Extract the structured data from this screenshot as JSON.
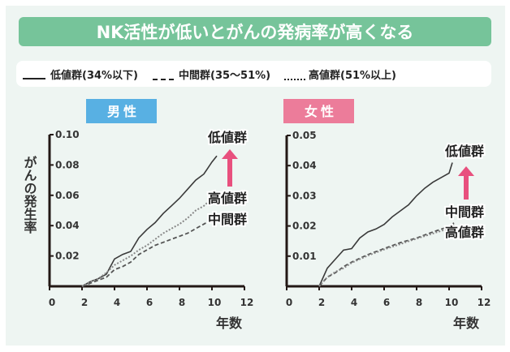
{
  "title": "NK活性が低いとがんの発病率が高くなる",
  "legend": [
    {
      "label": "低値群(34%以下)",
      "style": "solid"
    },
    {
      "label": "中間群(35〜51%)",
      "style": "dashed"
    },
    {
      "label": "高値群(51%以上)",
      "style": "dotted"
    }
  ],
  "colors": {
    "background": "#eef5f2",
    "title_bar": "#76c49a",
    "male": "#58b0e3",
    "female": "#ec7c9a",
    "arrow": "#e8507e",
    "line": "#333333"
  },
  "ylabel": "がんの発生率",
  "chart_data": [
    {
      "type": "line",
      "title": "男性",
      "xlabel": "年数",
      "xlim": [
        0,
        12
      ],
      "ylim": [
        0,
        0.1
      ],
      "xticks": [
        "0",
        "2",
        "4",
        "6",
        "8",
        "10",
        "12"
      ],
      "yticks": [
        "0.02",
        "0.04",
        "0.06",
        "0.08",
        "0.10"
      ],
      "grid": false,
      "series": [
        {
          "name": "低値群",
          "style": "solid",
          "x": [
            2,
            2.5,
            3,
            3.5,
            4,
            4.5,
            5,
            5.5,
            6,
            6.5,
            7,
            7.5,
            8,
            8.5,
            9,
            9.5,
            10,
            10.3
          ],
          "y": [
            0,
            0.003,
            0.005,
            0.008,
            0.018,
            0.021,
            0.023,
            0.032,
            0.0375,
            0.042,
            0.048,
            0.053,
            0.058,
            0.064,
            0.07,
            0.074,
            0.082,
            0.086
          ]
        },
        {
          "name": "中間群",
          "style": "dashed",
          "x": [
            2,
            2.5,
            3,
            3.5,
            4,
            4.5,
            5,
            5.5,
            6,
            6.5,
            7,
            7.5,
            8,
            8.5,
            9,
            9.5,
            10,
            10.3
          ],
          "y": [
            0,
            0.002,
            0.004,
            0.006,
            0.011,
            0.013,
            0.016,
            0.021,
            0.024,
            0.027,
            0.029,
            0.031,
            0.033,
            0.035,
            0.038,
            0.041,
            0.044,
            0.046
          ]
        },
        {
          "name": "高値群",
          "style": "dotted",
          "x": [
            2,
            2.5,
            3,
            3.5,
            4,
            4.5,
            5,
            5.5,
            6,
            6.5,
            7,
            7.5,
            8,
            8.5,
            9,
            9.5,
            10,
            10.3
          ],
          "y": [
            0,
            0.003,
            0.005,
            0.009,
            0.014,
            0.017,
            0.02,
            0.024,
            0.027,
            0.031,
            0.035,
            0.038,
            0.041,
            0.045,
            0.05,
            0.053,
            0.058,
            0.061
          ]
        }
      ],
      "annotations": [
        "低値群",
        "高値群",
        "中間群"
      ]
    },
    {
      "type": "line",
      "title": "女性",
      "xlabel": "年数",
      "xlim": [
        0,
        12
      ],
      "ylim": [
        0,
        0.05
      ],
      "xticks": [
        "0",
        "2",
        "4",
        "6",
        "8",
        "10",
        "12"
      ],
      "yticks": [
        "0.01",
        "0.02",
        "0.03",
        "0.04",
        "0.05"
      ],
      "grid": false,
      "series": [
        {
          "name": "低値群",
          "style": "solid",
          "x": [
            2,
            2.5,
            3,
            3.5,
            4,
            4.5,
            5,
            5.5,
            6,
            6.5,
            7,
            7.5,
            8,
            8.5,
            9,
            9.5,
            10,
            10.2
          ],
          "y": [
            0,
            0.006,
            0.009,
            0.012,
            0.0125,
            0.016,
            0.018,
            0.019,
            0.0205,
            0.023,
            0.025,
            0.027,
            0.03,
            0.0325,
            0.0345,
            0.036,
            0.0375,
            0.041
          ]
        },
        {
          "name": "中間群",
          "style": "dashed",
          "x": [
            2,
            2.5,
            3,
            3.5,
            4,
            5,
            6,
            7,
            8,
            9,
            10,
            10.3
          ],
          "y": [
            0,
            0.003,
            0.0045,
            0.0065,
            0.008,
            0.0105,
            0.0125,
            0.0145,
            0.016,
            0.018,
            0.0198,
            0.021
          ]
        },
        {
          "name": "高値群",
          "style": "dotted",
          "x": [
            2,
            2.5,
            3,
            3.5,
            4,
            5,
            6,
            7,
            8,
            9,
            10,
            10.3
          ],
          "y": [
            0,
            0.003,
            0.0048,
            0.006,
            0.0078,
            0.0102,
            0.0122,
            0.014,
            0.0158,
            0.0175,
            0.0192,
            0.0205
          ]
        }
      ],
      "annotations": [
        "低値群",
        "中間群",
        "高値群"
      ]
    }
  ]
}
